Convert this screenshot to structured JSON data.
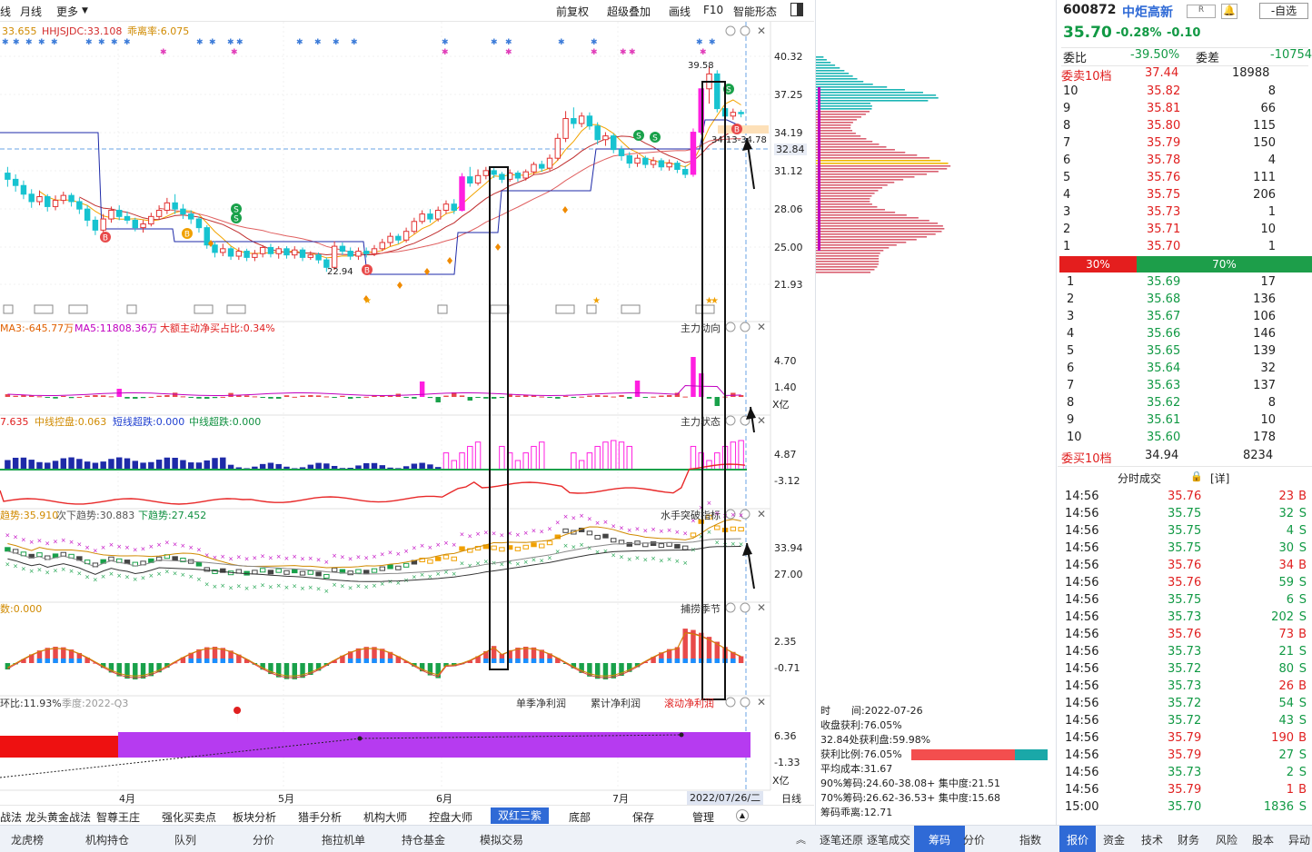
{
  "toolbar": {
    "left_items": [
      "线",
      "月线",
      "更多"
    ],
    "right_items": [
      "前复权",
      "超级叠加",
      "画线",
      "F10",
      "智能形态"
    ]
  },
  "main_chart": {
    "indicator_line": [
      "33.655",
      "HHJSJDC:33.108",
      "乖离率:6.075"
    ],
    "y_ticks": [
      "40.32",
      "37.25",
      "34.19",
      "32.84",
      "31.12",
      "28.06",
      "25.00",
      "21.93"
    ],
    "high_label": "39.58",
    "low_label": "22.94",
    "range_label": "34.13-34.78"
  },
  "panel_flow": {
    "legend": [
      "MA3:-645.77万",
      "MA5:11808.36万",
      "大额主动净买占比:0.34%"
    ],
    "title": "主力动向",
    "y_ticks": [
      "4.70",
      "1.40"
    ],
    "unit": "X亿"
  },
  "panel_state": {
    "legend": [
      "7.635",
      "中线控盘:0.063",
      "短线超跌:0.000",
      "中线超跌:0.000"
    ],
    "title": "主力状态",
    "y_ticks": [
      "4.87",
      "-3.12"
    ]
  },
  "panel_trend": {
    "legend": [
      "趋势:35.910",
      "次下趋势:30.883",
      "下趋势:27.452"
    ],
    "title": "水手突破指标",
    "y_ticks": [
      "33.94",
      "27.00"
    ]
  },
  "panel_season": {
    "legend": [
      "数:0.000"
    ],
    "title": "捕捞季节",
    "y_ticks": [
      "2.35",
      "-0.71"
    ]
  },
  "panel_profit": {
    "legend": [
      "环比:11.93%",
      "季度:2022-Q3"
    ],
    "buttons": [
      "单季净利润",
      "累计净利润",
      "滚动净利润"
    ],
    "y_ticks": [
      "6.36",
      "-1.33"
    ],
    "unit": "X亿"
  },
  "x_axis": {
    "months": [
      "4月",
      "5月",
      "6月",
      "7月"
    ],
    "date": "2022/07/26/二",
    "period": "日线"
  },
  "func_tabs": [
    "战法",
    "龙头黄金战法",
    "智尊王庄",
    "强化买卖点",
    "板块分析",
    "猎手分析",
    "机构大师",
    "控盘大师",
    "双红三紫",
    "底部",
    "保存",
    "管理"
  ],
  "active_func_tab": "双红三紫",
  "bottom_tabs": [
    "龙虎榜",
    "机构持仓",
    "队列",
    "分价",
    "拖拉机单",
    "持仓基金",
    "模拟交易"
  ],
  "chip_tabs": [
    "逐笔还原",
    "逐笔成交",
    "筹码",
    "分价",
    "指数"
  ],
  "right_tabs": [
    "报价",
    "资金",
    "技术",
    "财务",
    "风险",
    "股本",
    "异动"
  ],
  "chip_info": {
    "time_label": "时",
    "time_value": "间:2022-07-26",
    "lines": [
      "收盘获利:76.05%",
      "32.84处获利盘:59.98%",
      "获利比例:76.05%",
      "平均成本:31.67",
      "90%筹码:24.60-38.08+ 集中度:21.51",
      "70%筹码:26.62-36.53+ 集中度:15.68",
      "筹码乖离:12.71"
    ]
  },
  "quote": {
    "code": "600872",
    "name": "中炬高新",
    "badge": "R",
    "watch_label": "-自选",
    "price": "35.70",
    "change_pct": "-0.28%",
    "change": "-0.10",
    "weibi_label": "委比",
    "weibi": "-39.50%",
    "weicha_label": "委差",
    "weicha": "-10754",
    "sell10_label": "委卖10档",
    "sell10_price": "37.44",
    "sell10_vol": "18988",
    "buy10_label": "委买10档",
    "buy10_price": "34.94",
    "buy10_vol": "8234",
    "ratio_sell": "30%",
    "ratio_buy": "70%"
  },
  "asks": [
    {
      "lvl": "10",
      "p": "35.82",
      "v": "8"
    },
    {
      "lvl": "9",
      "p": "35.81",
      "v": "66"
    },
    {
      "lvl": "8",
      "p": "35.80",
      "v": "115"
    },
    {
      "lvl": "7",
      "p": "35.79",
      "v": "150"
    },
    {
      "lvl": "6",
      "p": "35.78",
      "v": "4"
    },
    {
      "lvl": "5",
      "p": "35.76",
      "v": "111"
    },
    {
      "lvl": "4",
      "p": "35.75",
      "v": "206"
    },
    {
      "lvl": "3",
      "p": "35.73",
      "v": "1"
    },
    {
      "lvl": "2",
      "p": "35.71",
      "v": "10"
    },
    {
      "lvl": "1",
      "p": "35.70",
      "v": "1"
    }
  ],
  "bids": [
    {
      "lvl": "1",
      "p": "35.69",
      "v": "17"
    },
    {
      "lvl": "2",
      "p": "35.68",
      "v": "136"
    },
    {
      "lvl": "3",
      "p": "35.67",
      "v": "106"
    },
    {
      "lvl": "4",
      "p": "35.66",
      "v": "146"
    },
    {
      "lvl": "5",
      "p": "35.65",
      "v": "139"
    },
    {
      "lvl": "6",
      "p": "35.64",
      "v": "32"
    },
    {
      "lvl": "7",
      "p": "35.63",
      "v": "137"
    },
    {
      "lvl": "8",
      "p": "35.62",
      "v": "8"
    },
    {
      "lvl": "9",
      "p": "35.61",
      "v": "10"
    },
    {
      "lvl": "10",
      "p": "35.60",
      "v": "178"
    }
  ],
  "ticks_header": {
    "title": "分时成交",
    "detail": "[详]"
  },
  "ticks": [
    {
      "t": "14:56",
      "p": "35.76",
      "v": "23",
      "s": "B"
    },
    {
      "t": "14:56",
      "p": "35.75",
      "v": "32",
      "s": "S"
    },
    {
      "t": "14:56",
      "p": "35.75",
      "v": "4",
      "s": "S"
    },
    {
      "t": "14:56",
      "p": "35.75",
      "v": "30",
      "s": "S"
    },
    {
      "t": "14:56",
      "p": "35.76",
      "v": "34",
      "s": "B"
    },
    {
      "t": "14:56",
      "p": "35.76",
      "v": "59",
      "s": "S"
    },
    {
      "t": "14:56",
      "p": "35.75",
      "v": "6",
      "s": "S"
    },
    {
      "t": "14:56",
      "p": "35.73",
      "v": "202",
      "s": "S"
    },
    {
      "t": "14:56",
      "p": "35.76",
      "v": "73",
      "s": "B"
    },
    {
      "t": "14:56",
      "p": "35.73",
      "v": "21",
      "s": "S"
    },
    {
      "t": "14:56",
      "p": "35.72",
      "v": "80",
      "s": "S"
    },
    {
      "t": "14:56",
      "p": "35.73",
      "v": "26",
      "s": "B"
    },
    {
      "t": "14:56",
      "p": "35.72",
      "v": "54",
      "s": "S"
    },
    {
      "t": "14:56",
      "p": "35.72",
      "v": "43",
      "s": "S"
    },
    {
      "t": "14:56",
      "p": "35.79",
      "v": "190",
      "s": "B"
    },
    {
      "t": "14:56",
      "p": "35.79",
      "v": "27",
      "s": "S"
    },
    {
      "t": "14:56",
      "p": "35.73",
      "v": "2",
      "s": "S"
    },
    {
      "t": "14:56",
      "p": "35.79",
      "v": "1",
      "s": "B"
    },
    {
      "t": "15:00",
      "p": "35.70",
      "v": "1836",
      "s": "S"
    }
  ],
  "candles": [
    {
      "o": 30.9,
      "c": 30.4,
      "h": 31.4,
      "l": 29.8
    },
    {
      "o": 30.4,
      "c": 29.9,
      "h": 30.8,
      "l": 29.4
    },
    {
      "o": 29.9,
      "c": 29.2,
      "h": 30.3,
      "l": 28.8
    },
    {
      "o": 29.2,
      "c": 28.6,
      "h": 29.6,
      "l": 28.1
    },
    {
      "o": 28.6,
      "c": 29.0,
      "h": 29.5,
      "l": 28.3
    },
    {
      "o": 29.0,
      "c": 28.2,
      "h": 29.2,
      "l": 27.8
    },
    {
      "o": 28.2,
      "c": 28.7,
      "h": 29.1,
      "l": 27.9
    },
    {
      "o": 28.7,
      "c": 29.1,
      "h": 29.4,
      "l": 28.4
    },
    {
      "o": 29.1,
      "c": 28.6,
      "h": 29.3,
      "l": 28.2
    },
    {
      "o": 28.6,
      "c": 28.0,
      "h": 28.9,
      "l": 27.6
    },
    {
      "o": 28.0,
      "c": 27.1,
      "h": 28.3,
      "l": 26.6
    },
    {
      "o": 27.1,
      "c": 26.3,
      "h": 27.4,
      "l": 25.9
    },
    {
      "o": 26.3,
      "c": 27.2,
      "h": 27.6,
      "l": 26.0
    },
    {
      "o": 27.2,
      "c": 27.9,
      "h": 28.2,
      "l": 26.9
    },
    {
      "o": 27.9,
      "c": 27.4,
      "h": 28.3,
      "l": 27.1
    },
    {
      "o": 27.4,
      "c": 27.1,
      "h": 27.8,
      "l": 26.8
    },
    {
      "o": 27.1,
      "c": 26.5,
      "h": 27.3,
      "l": 26.2
    },
    {
      "o": 26.5,
      "c": 26.8,
      "h": 27.1,
      "l": 26.1
    },
    {
      "o": 26.8,
      "c": 27.4,
      "h": 27.7,
      "l": 26.6
    },
    {
      "o": 27.4,
      "c": 27.9,
      "h": 28.3,
      "l": 27.2
    },
    {
      "o": 27.9,
      "c": 28.5,
      "h": 28.9,
      "l": 27.6
    },
    {
      "o": 28.5,
      "c": 28.0,
      "h": 29.2,
      "l": 27.6
    },
    {
      "o": 28.0,
      "c": 27.6,
      "h": 28.4,
      "l": 27.2
    },
    {
      "o": 27.6,
      "c": 27.2,
      "h": 27.9,
      "l": 26.8
    },
    {
      "o": 27.2,
      "c": 26.5,
      "h": 27.4,
      "l": 26.1
    },
    {
      "o": 26.5,
      "c": 25.1,
      "h": 26.7,
      "l": 24.8
    },
    {
      "o": 25.1,
      "c": 24.5,
      "h": 25.4,
      "l": 24.1
    },
    {
      "o": 24.5,
      "c": 24.8,
      "h": 25.2,
      "l": 24.2
    },
    {
      "o": 24.8,
      "c": 24.2,
      "h": 25.0,
      "l": 23.9
    },
    {
      "o": 24.2,
      "c": 24.6,
      "h": 24.9,
      "l": 23.9
    },
    {
      "o": 24.6,
      "c": 24.1,
      "h": 24.8,
      "l": 23.8
    },
    {
      "o": 24.1,
      "c": 24.4,
      "h": 24.7,
      "l": 23.8
    },
    {
      "o": 24.4,
      "c": 24.9,
      "h": 25.1,
      "l": 24.1
    },
    {
      "o": 24.9,
      "c": 24.4,
      "h": 25.2,
      "l": 24.1
    },
    {
      "o": 24.4,
      "c": 24.8,
      "h": 25.0,
      "l": 24.0
    },
    {
      "o": 24.8,
      "c": 24.3,
      "h": 25.0,
      "l": 24.0
    },
    {
      "o": 24.3,
      "c": 24.7,
      "h": 25.0,
      "l": 24.0
    },
    {
      "o": 24.7,
      "c": 24.1,
      "h": 24.9,
      "l": 23.8
    },
    {
      "o": 24.1,
      "c": 24.3,
      "h": 24.6,
      "l": 23.9
    },
    {
      "o": 24.3,
      "c": 23.9,
      "h": 24.5,
      "l": 23.6
    },
    {
      "o": 23.9,
      "c": 23.3,
      "h": 24.1,
      "l": 22.94
    },
    {
      "o": 23.3,
      "c": 25.0,
      "h": 25.4,
      "l": 23.1
    },
    {
      "o": 25.0,
      "c": 24.6,
      "h": 25.3,
      "l": 24.3
    },
    {
      "o": 24.6,
      "c": 24.2,
      "h": 24.9,
      "l": 23.9
    },
    {
      "o": 24.2,
      "c": 24.6,
      "h": 24.9,
      "l": 23.9
    },
    {
      "o": 24.6,
      "c": 24.4,
      "h": 24.9,
      "l": 24.1
    },
    {
      "o": 24.4,
      "c": 24.8,
      "h": 25.1,
      "l": 24.2
    },
    {
      "o": 24.8,
      "c": 25.3,
      "h": 25.6,
      "l": 24.6
    },
    {
      "o": 25.3,
      "c": 25.8,
      "h": 26.1,
      "l": 25.0
    },
    {
      "o": 25.8,
      "c": 25.5,
      "h": 26.0,
      "l": 25.2
    },
    {
      "o": 25.5,
      "c": 26.2,
      "h": 26.5,
      "l": 25.3
    },
    {
      "o": 26.2,
      "c": 27.0,
      "h": 27.3,
      "l": 26.0
    },
    {
      "o": 27.0,
      "c": 27.6,
      "h": 27.9,
      "l": 26.8
    },
    {
      "o": 27.6,
      "c": 27.2,
      "h": 28.0,
      "l": 26.9
    },
    {
      "o": 27.2,
      "c": 27.9,
      "h": 28.2,
      "l": 27.0
    },
    {
      "o": 27.9,
      "c": 28.4,
      "h": 28.7,
      "l": 27.6
    },
    {
      "o": 28.4,
      "c": 27.9,
      "h": 28.8,
      "l": 27.6
    },
    {
      "o": 27.9,
      "c": 30.6,
      "h": 30.9,
      "l": 27.8
    },
    {
      "o": 30.6,
      "c": 30.1,
      "h": 31.4,
      "l": 29.8
    },
    {
      "o": 30.1,
      "c": 30.7,
      "h": 31.2,
      "l": 29.9
    },
    {
      "o": 30.7,
      "c": 31.1,
      "h": 31.4,
      "l": 30.4
    },
    {
      "o": 31.1,
      "c": 30.8,
      "h": 31.3,
      "l": 30.5
    },
    {
      "o": 30.8,
      "c": 30.4,
      "h": 31.0,
      "l": 30.1
    },
    {
      "o": 30.4,
      "c": 30.9,
      "h": 31.2,
      "l": 30.2
    },
    {
      "o": 30.9,
      "c": 30.5,
      "h": 31.1,
      "l": 30.2
    },
    {
      "o": 30.5,
      "c": 31.0,
      "h": 31.2,
      "l": 30.3
    },
    {
      "o": 31.0,
      "c": 31.6,
      "h": 31.8,
      "l": 30.8
    },
    {
      "o": 31.6,
      "c": 31.3,
      "h": 31.9,
      "l": 31.0
    },
    {
      "o": 31.3,
      "c": 32.1,
      "h": 32.4,
      "l": 31.1
    },
    {
      "o": 32.1,
      "c": 33.7,
      "h": 34.1,
      "l": 31.9
    },
    {
      "o": 33.7,
      "c": 35.3,
      "h": 35.9,
      "l": 33.4
    },
    {
      "o": 35.3,
      "c": 34.9,
      "h": 36.2,
      "l": 34.5
    },
    {
      "o": 34.9,
      "c": 35.5,
      "h": 35.8,
      "l": 34.6
    },
    {
      "o": 35.5,
      "c": 34.7,
      "h": 35.8,
      "l": 34.4
    },
    {
      "o": 34.7,
      "c": 33.6,
      "h": 35.0,
      "l": 33.2
    },
    {
      "o": 33.6,
      "c": 33.9,
      "h": 34.2,
      "l": 33.1
    },
    {
      "o": 33.9,
      "c": 32.8,
      "h": 34.1,
      "l": 32.5
    },
    {
      "o": 32.8,
      "c": 32.3,
      "h": 33.1,
      "l": 31.9
    },
    {
      "o": 32.3,
      "c": 31.7,
      "h": 32.6,
      "l": 31.3
    },
    {
      "o": 31.7,
      "c": 32.1,
      "h": 32.4,
      "l": 31.4
    },
    {
      "o": 32.1,
      "c": 31.6,
      "h": 32.3,
      "l": 31.3
    },
    {
      "o": 31.6,
      "c": 31.9,
      "h": 32.2,
      "l": 31.3
    },
    {
      "o": 31.9,
      "c": 31.4,
      "h": 32.1,
      "l": 31.1
    },
    {
      "o": 31.4,
      "c": 31.7,
      "h": 32.0,
      "l": 31.1
    },
    {
      "o": 31.7,
      "c": 31.2,
      "h": 31.9,
      "l": 30.9
    },
    {
      "o": 31.2,
      "c": 30.8,
      "h": 31.5,
      "l": 30.5
    },
    {
      "o": 30.8,
      "c": 34.2,
      "h": 34.5,
      "l": 30.6
    },
    {
      "o": 34.2,
      "c": 37.7,
      "h": 37.7,
      "l": 34.0
    },
    {
      "o": 37.7,
      "c": 38.9,
      "h": 39.58,
      "l": 36.5
    },
    {
      "o": 38.9,
      "c": 36.1,
      "h": 39.2,
      "l": 35.8
    },
    {
      "o": 36.1,
      "c": 35.5,
      "h": 36.4,
      "l": 35.1
    },
    {
      "o": 35.5,
      "c": 35.8,
      "h": 36.1,
      "l": 35.2
    },
    {
      "o": 35.8,
      "c": 35.7,
      "h": 36.0,
      "l": 35.4
    }
  ]
}
